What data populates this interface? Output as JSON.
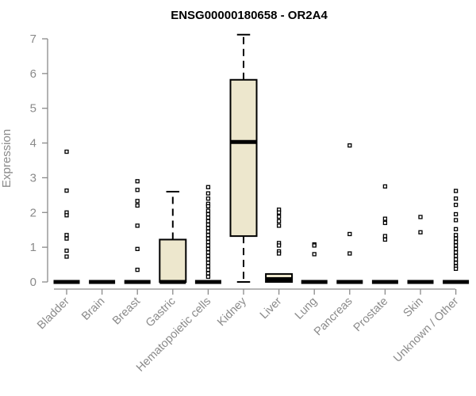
{
  "chart_data": {
    "type": "boxplot",
    "title": "ENSG00000180658 - OR2A4",
    "xlabel": "",
    "ylabel": "Expression",
    "ylim": [
      0,
      7
    ],
    "yticks": [
      0,
      1,
      2,
      3,
      4,
      5,
      6,
      7
    ],
    "grid": false,
    "legend": "none",
    "colors": {
      "box_fill": "#ede7cd",
      "box_stroke": "#000000",
      "axis": "#8a8a8a",
      "text": "#8a8a8a",
      "title": "#000000"
    },
    "categories": [
      "Bladder",
      "Brain",
      "Breast",
      "Gastric",
      "Hematopoietic cells",
      "Kidney",
      "Liver",
      "Lung",
      "Pancreas",
      "Prostate",
      "Skin",
      "Unknown / Other"
    ],
    "boxes": [
      {
        "category": "Bladder",
        "q1": 0,
        "median": 0,
        "q3": 0,
        "whisker_low": 0,
        "whisker_high": 0,
        "outliers": [
          3.75,
          2.63,
          2.0,
          1.92,
          1.35,
          1.25,
          0.9,
          0.73
        ]
      },
      {
        "category": "Brain",
        "q1": 0,
        "median": 0,
        "q3": 0,
        "whisker_low": 0,
        "whisker_high": 0,
        "outliers": []
      },
      {
        "category": "Breast",
        "q1": 0,
        "median": 0,
        "q3": 0,
        "whisker_low": 0,
        "whisker_high": 0,
        "outliers": [
          2.9,
          2.65,
          2.33,
          2.2,
          1.62,
          0.95,
          0.35
        ]
      },
      {
        "category": "Gastric",
        "q1": 0,
        "median": 0,
        "q3": 1.22,
        "whisker_low": 0,
        "whisker_high": 2.6,
        "outliers": []
      },
      {
        "category": "Hematopoietic cells",
        "q1": 0,
        "median": 0,
        "q3": 0,
        "whisker_low": 0,
        "whisker_high": 0,
        "outliers": [
          2.73,
          2.55,
          2.4,
          2.25,
          2.18,
          2.05,
          1.95,
          1.85,
          1.75,
          1.65,
          1.55,
          1.45,
          1.35,
          1.25,
          1.15,
          1.05,
          0.95,
          0.85,
          0.75,
          0.65,
          0.55,
          0.45,
          0.35,
          0.25,
          0.15
        ]
      },
      {
        "category": "Kidney",
        "q1": 1.32,
        "median": 4.03,
        "q3": 5.82,
        "whisker_low": 0,
        "whisker_high": 7.12,
        "outliers": []
      },
      {
        "category": "Liver",
        "q1": 0,
        "median": 0.08,
        "q3": 0.23,
        "whisker_low": 0,
        "whisker_high": 0.23,
        "outliers": [
          2.08,
          2.0,
          1.88,
          1.75,
          1.62,
          1.12,
          1.05,
          0.88,
          0.82
        ]
      },
      {
        "category": "Lung",
        "q1": 0,
        "median": 0,
        "q3": 0,
        "whisker_low": 0,
        "whisker_high": 0,
        "outliers": [
          1.08,
          1.05,
          0.8
        ]
      },
      {
        "category": "Pancreas",
        "q1": 0,
        "median": 0,
        "q3": 0,
        "whisker_low": 0,
        "whisker_high": 0,
        "outliers": [
          3.93,
          1.38,
          0.82
        ]
      },
      {
        "category": "Prostate",
        "q1": 0,
        "median": 0,
        "q3": 0,
        "whisker_low": 0,
        "whisker_high": 0,
        "outliers": [
          2.75,
          1.82,
          1.7,
          1.32,
          1.22
        ]
      },
      {
        "category": "Skin",
        "q1": 0,
        "median": 0,
        "q3": 0,
        "whisker_low": 0,
        "whisker_high": 0,
        "outliers": [
          1.87,
          1.43
        ]
      },
      {
        "category": "Unknown / Other",
        "q1": 0,
        "median": 0,
        "q3": 0,
        "whisker_low": 0,
        "whisker_high": 0,
        "outliers": [
          2.62,
          2.4,
          2.22,
          1.95,
          1.78,
          1.52,
          1.35,
          1.25,
          1.15,
          1.05,
          0.95,
          0.85,
          0.75,
          0.65,
          0.55,
          0.45,
          0.38
        ]
      }
    ]
  }
}
